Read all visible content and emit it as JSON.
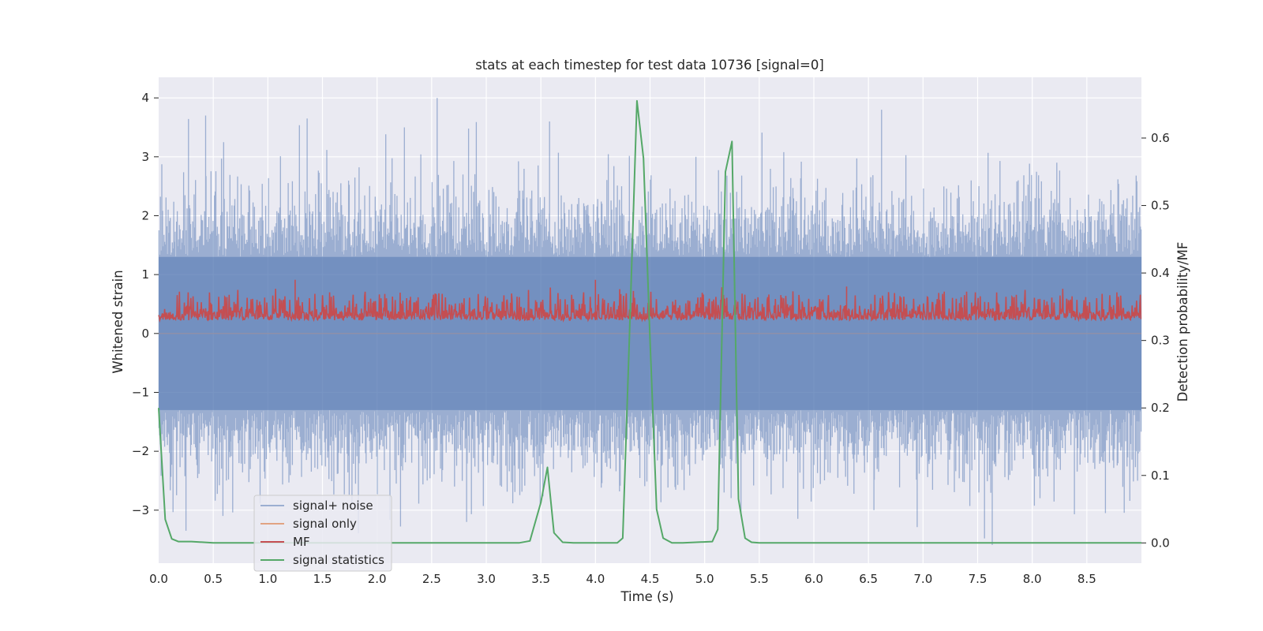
{
  "chart_data": {
    "type": "line",
    "title": "stats at each timestep for test data 10736 [signal=0]",
    "xlabel": "Time (s)",
    "ylabel": "Whitened strain",
    "y2label": "Detection probability/MF",
    "xlim": [
      0.0,
      9.0
    ],
    "ylim": [
      -3.9,
      4.35
    ],
    "y2lim": [
      -0.03,
      0.69
    ],
    "xticks": [
      "0.0",
      "0.5",
      "1.0",
      "1.5",
      "2.0",
      "2.5",
      "3.0",
      "3.5",
      "4.0",
      "4.5",
      "5.0",
      "5.5",
      "6.0",
      "6.5",
      "7.0",
      "7.5",
      "8.0",
      "8.5"
    ],
    "yticks": [
      "4",
      "3",
      "2",
      "1",
      "0",
      "−1",
      "−2",
      "−3"
    ],
    "y2ticks": [
      "0.6",
      "0.5",
      "0.4",
      "0.3",
      "0.2",
      "0.1",
      "0.0"
    ],
    "grid": true,
    "legend_position": "lower-left",
    "colors": {
      "background": "#eaeaf2",
      "grid": "#ffffff",
      "signal_noise": "#4c72b0",
      "signal_only": "#dd8452",
      "mf": "#c44e52",
      "signal_statistics": "#55a868"
    },
    "series": [
      {
        "name": "signal+ noise",
        "axis": "left",
        "description_values": {
          "peak_spikes": [
            {
              "x": 0.43,
              "y": 3.7
            },
            {
              "x": 1.36,
              "y": 3.65
            },
            {
              "x": 2.25,
              "y": 3.5
            },
            {
              "x": 2.55,
              "y": 4.0
            },
            {
              "x": 3.58,
              "y": 3.6
            },
            {
              "x": 4.92,
              "y": 3.0
            },
            {
              "x": 6.62,
              "y": 3.8
            },
            {
              "x": 1.77,
              "y": -2.9
            },
            {
              "x": 0.25,
              "y": -3.35
            },
            {
              "x": 2.82,
              "y": -3.2
            },
            {
              "x": 6.55,
              "y": -3.0
            },
            {
              "x": 8.67,
              "y": -3.05
            }
          ],
          "band_y": [
            -1.3,
            1.3
          ]
        }
      },
      {
        "name": "signal only",
        "axis": "left",
        "x": [
          0.0,
          9.0
        ],
        "y": [
          0.0,
          0.0
        ]
      },
      {
        "name": "MF",
        "axis": "right",
        "band_range": [
          0.3,
          0.4
        ],
        "peaks": [
          {
            "x": 1.25,
            "y": 0.39
          },
          {
            "x": 4.0,
            "y": 0.39
          },
          {
            "x": 6.3,
            "y": 0.38
          }
        ]
      },
      {
        "name": "signal statistics",
        "axis": "right",
        "x": [
          0.0,
          0.06,
          0.12,
          0.18,
          0.3,
          0.5,
          3.3,
          3.4,
          3.5,
          3.56,
          3.62,
          3.7,
          3.8,
          4.2,
          4.25,
          4.31,
          4.38,
          4.44,
          4.5,
          4.56,
          4.62,
          4.7,
          4.8,
          5.07,
          5.12,
          5.19,
          5.25,
          5.31,
          5.37,
          5.43,
          5.5,
          9.0
        ],
        "y": [
          0.2,
          0.035,
          0.006,
          0.002,
          0.002,
          0.0,
          0.0,
          0.003,
          0.06,
          0.112,
          0.015,
          0.001,
          0.0,
          0.0,
          0.007,
          0.3,
          0.655,
          0.57,
          0.3,
          0.05,
          0.007,
          0.0,
          0.0,
          0.002,
          0.02,
          0.55,
          0.595,
          0.065,
          0.007,
          0.001,
          0.0,
          0.0
        ]
      }
    ]
  }
}
